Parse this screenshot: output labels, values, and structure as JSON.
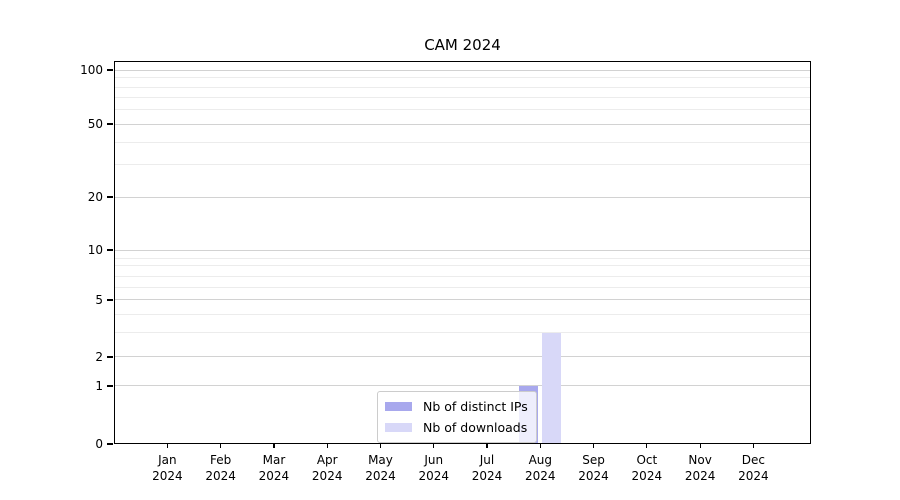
{
  "chart_data": {
    "type": "bar",
    "title": "CAM 2024",
    "xlabel": "",
    "ylabel": "",
    "grid": true,
    "legend_position": "lower center (inside plot, offset right)",
    "categories": [
      "Jan 2024",
      "Feb 2024",
      "Mar 2024",
      "Apr 2024",
      "May 2024",
      "Jun 2024",
      "Jul 2024",
      "Aug 2024",
      "Sep 2024",
      "Oct 2024",
      "Nov 2024",
      "Dec 2024"
    ],
    "series": [
      {
        "name": "Nb of distinct IPs",
        "color": "#a8a8ed",
        "values": [
          0,
          0,
          0,
          0,
          0,
          0,
          0,
          1,
          0,
          0,
          0,
          0
        ]
      },
      {
        "name": "Nb of downloads",
        "color": "#d8d8f8",
        "values": [
          0,
          0,
          0,
          0,
          0,
          0,
          0,
          3,
          0,
          0,
          0,
          0
        ]
      }
    ],
    "y_axis": {
      "scale": "log-like (0 pinned at baseline)",
      "tick_values": [
        0,
        1,
        2,
        5,
        10,
        20,
        50,
        100
      ],
      "minor_grid_values": [
        3,
        4,
        6,
        7,
        8,
        9,
        30,
        40,
        60,
        70,
        80,
        90
      ],
      "ylim": [
        0,
        115
      ],
      "value_fractions": {
        "0": 0,
        "1": 0.1515,
        "2": 0.2272,
        "3": 0.2911,
        "4": 0.3381,
        "5": 0.376,
        "6": 0.4099,
        "7": 0.4386,
        "8": 0.4648,
        "9": 0.4856,
        "10": 0.5065,
        "20": 0.6449,
        "30": 0.7285,
        "40": 0.7885,
        "50": 0.8355,
        "60": 0.8721,
        "70": 0.9034,
        "80": 0.9308,
        "90": 0.9569,
        "100": 0.9765
      }
    }
  },
  "colors": {
    "major_grid": "#d2d2d2",
    "minor_grid": "#ececec",
    "axis": "#000000",
    "background": "#ffffff"
  }
}
